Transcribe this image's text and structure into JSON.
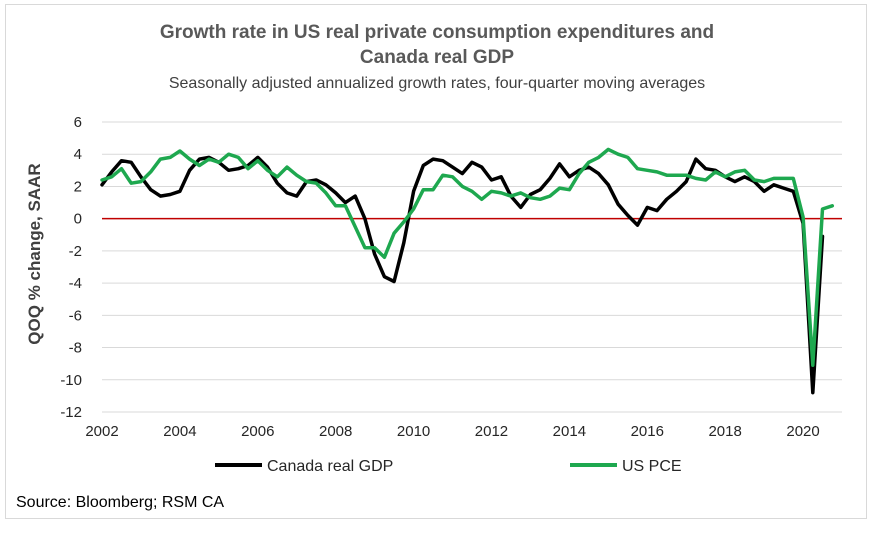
{
  "chart_data": {
    "type": "line",
    "title_lines": [
      "Growth rate in US real private consumption expenditures and",
      "Canada real GDP"
    ],
    "subtitle": "Seasonally adjusted annualized growth rates, four-quarter moving averages",
    "xlabel": "",
    "ylabel": "QOQ % change, SAAR",
    "ylim": [
      -12,
      6
    ],
    "yticks": [
      "6",
      "4",
      "2",
      "0",
      "-2",
      "-4",
      "-6",
      "-8",
      "-10",
      "-12"
    ],
    "xlim": [
      2002,
      2021
    ],
    "xticks": [
      "2002",
      "2004",
      "2006",
      "2008",
      "2010",
      "2012",
      "2014",
      "2016",
      "2018",
      "2020"
    ],
    "grid": true,
    "zero_line_color": "#c00000",
    "legend_position": "bottom",
    "series": [
      {
        "name": "Canada real GDP",
        "color": "#000000",
        "points": [
          [
            2002.0,
            2.1
          ],
          [
            2002.25,
            2.9
          ],
          [
            2002.5,
            3.6
          ],
          [
            2002.75,
            3.5
          ],
          [
            2003.0,
            2.6
          ],
          [
            2003.25,
            1.8
          ],
          [
            2003.5,
            1.4
          ],
          [
            2003.75,
            1.5
          ],
          [
            2004.0,
            1.7
          ],
          [
            2004.25,
            3.0
          ],
          [
            2004.5,
            3.7
          ],
          [
            2004.75,
            3.8
          ],
          [
            2005.0,
            3.5
          ],
          [
            2005.25,
            3.0
          ],
          [
            2005.5,
            3.1
          ],
          [
            2005.75,
            3.3
          ],
          [
            2006.0,
            3.8
          ],
          [
            2006.25,
            3.2
          ],
          [
            2006.5,
            2.2
          ],
          [
            2006.75,
            1.6
          ],
          [
            2007.0,
            1.4
          ],
          [
            2007.25,
            2.3
          ],
          [
            2007.5,
            2.4
          ],
          [
            2007.75,
            2.1
          ],
          [
            2008.0,
            1.6
          ],
          [
            2008.25,
            1.0
          ],
          [
            2008.5,
            1.4
          ],
          [
            2008.75,
            0.0
          ],
          [
            2009.0,
            -2.2
          ],
          [
            2009.25,
            -3.6
          ],
          [
            2009.5,
            -3.9
          ],
          [
            2009.75,
            -1.5
          ],
          [
            2010.0,
            1.7
          ],
          [
            2010.25,
            3.3
          ],
          [
            2010.5,
            3.7
          ],
          [
            2010.75,
            3.6
          ],
          [
            2011.0,
            3.2
          ],
          [
            2011.25,
            2.8
          ],
          [
            2011.5,
            3.5
          ],
          [
            2011.75,
            3.2
          ],
          [
            2012.0,
            2.4
          ],
          [
            2012.25,
            2.6
          ],
          [
            2012.5,
            1.4
          ],
          [
            2012.75,
            0.7
          ],
          [
            2013.0,
            1.5
          ],
          [
            2013.25,
            1.8
          ],
          [
            2013.5,
            2.5
          ],
          [
            2013.75,
            3.4
          ],
          [
            2014.0,
            2.6
          ],
          [
            2014.25,
            3.0
          ],
          [
            2014.5,
            3.2
          ],
          [
            2014.75,
            2.8
          ],
          [
            2015.0,
            2.1
          ],
          [
            2015.25,
            0.9
          ],
          [
            2015.5,
            0.2
          ],
          [
            2015.75,
            -0.4
          ],
          [
            2016.0,
            0.7
          ],
          [
            2016.25,
            0.5
          ],
          [
            2016.5,
            1.2
          ],
          [
            2016.75,
            1.7
          ],
          [
            2017.0,
            2.3
          ],
          [
            2017.25,
            3.7
          ],
          [
            2017.5,
            3.1
          ],
          [
            2017.75,
            3.0
          ],
          [
            2018.0,
            2.6
          ],
          [
            2018.25,
            2.3
          ],
          [
            2018.5,
            2.6
          ],
          [
            2018.75,
            2.3
          ],
          [
            2019.0,
            1.7
          ],
          [
            2019.25,
            2.1
          ],
          [
            2019.5,
            1.9
          ],
          [
            2019.75,
            1.7
          ],
          [
            2020.0,
            -0.3
          ],
          [
            2020.25,
            -10.8
          ],
          [
            2020.5,
            -1.1
          ]
        ]
      },
      {
        "name": "US PCE",
        "color": "#1ea84f",
        "points": [
          [
            2002.0,
            2.4
          ],
          [
            2002.25,
            2.6
          ],
          [
            2002.5,
            3.1
          ],
          [
            2002.75,
            2.2
          ],
          [
            2003.0,
            2.3
          ],
          [
            2003.25,
            2.9
          ],
          [
            2003.5,
            3.7
          ],
          [
            2003.75,
            3.8
          ],
          [
            2004.0,
            4.2
          ],
          [
            2004.25,
            3.7
          ],
          [
            2004.5,
            3.3
          ],
          [
            2004.75,
            3.7
          ],
          [
            2005.0,
            3.5
          ],
          [
            2005.25,
            4.0
          ],
          [
            2005.5,
            3.8
          ],
          [
            2005.75,
            3.1
          ],
          [
            2006.0,
            3.6
          ],
          [
            2006.25,
            3.0
          ],
          [
            2006.5,
            2.6
          ],
          [
            2006.75,
            3.2
          ],
          [
            2007.0,
            2.7
          ],
          [
            2007.25,
            2.3
          ],
          [
            2007.5,
            2.2
          ],
          [
            2007.75,
            1.6
          ],
          [
            2008.0,
            0.8
          ],
          [
            2008.25,
            0.8
          ],
          [
            2008.5,
            -0.5
          ],
          [
            2008.75,
            -1.8
          ],
          [
            2009.0,
            -1.8
          ],
          [
            2009.25,
            -2.4
          ],
          [
            2009.5,
            -0.9
          ],
          [
            2009.75,
            -0.2
          ],
          [
            2010.0,
            0.6
          ],
          [
            2010.25,
            1.8
          ],
          [
            2010.5,
            1.8
          ],
          [
            2010.75,
            2.7
          ],
          [
            2011.0,
            2.6
          ],
          [
            2011.25,
            2.0
          ],
          [
            2011.5,
            1.7
          ],
          [
            2011.75,
            1.2
          ],
          [
            2012.0,
            1.7
          ],
          [
            2012.25,
            1.6
          ],
          [
            2012.5,
            1.4
          ],
          [
            2012.75,
            1.6
          ],
          [
            2013.0,
            1.3
          ],
          [
            2013.25,
            1.2
          ],
          [
            2013.5,
            1.4
          ],
          [
            2013.75,
            1.9
          ],
          [
            2014.0,
            1.8
          ],
          [
            2014.25,
            2.8
          ],
          [
            2014.5,
            3.5
          ],
          [
            2014.75,
            3.8
          ],
          [
            2015.0,
            4.3
          ],
          [
            2015.25,
            4.0
          ],
          [
            2015.5,
            3.8
          ],
          [
            2015.75,
            3.1
          ],
          [
            2016.0,
            3.0
          ],
          [
            2016.25,
            2.9
          ],
          [
            2016.5,
            2.7
          ],
          [
            2016.75,
            2.7
          ],
          [
            2017.0,
            2.7
          ],
          [
            2017.25,
            2.5
          ],
          [
            2017.5,
            2.4
          ],
          [
            2017.75,
            2.9
          ],
          [
            2018.0,
            2.6
          ],
          [
            2018.25,
            2.9
          ],
          [
            2018.5,
            3.0
          ],
          [
            2018.75,
            2.4
          ],
          [
            2019.0,
            2.3
          ],
          [
            2019.25,
            2.5
          ],
          [
            2019.5,
            2.5
          ],
          [
            2019.75,
            2.5
          ],
          [
            2020.0,
            0.1
          ],
          [
            2020.25,
            -9.1
          ],
          [
            2020.5,
            0.6
          ],
          [
            2020.75,
            0.8
          ]
        ]
      }
    ]
  },
  "source": "Source: Bloomberg; RSM CA"
}
